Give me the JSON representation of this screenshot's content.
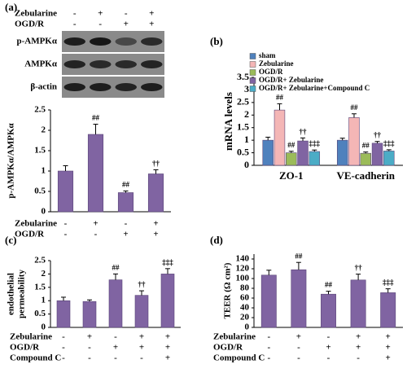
{
  "chart_data": [
    {
      "type": "bar",
      "panel_label": "(a)",
      "y_label": "p-AMPKα/AMPKα",
      "blot_conditions": [
        {
          "name": "Zebularine",
          "signs": [
            "-",
            "+",
            "-",
            "+"
          ]
        },
        {
          "name": "OGD/R",
          "signs": [
            "-",
            "-",
            "+",
            "+"
          ]
        }
      ],
      "blot": [
        "p-AMPKα",
        "AMPKα",
        "β-actin"
      ],
      "values": [
        1.0,
        1.9,
        0.47,
        0.93
      ],
      "errors": [
        0.13,
        0.25,
        0.04,
        0.1
      ],
      "annotations": [
        null,
        "##",
        "##",
        "††"
      ],
      "color": "#8064a2",
      "ylim": [
        0,
        2.5
      ],
      "yticks": [
        0,
        0.5,
        1,
        1.5,
        2,
        2.5
      ],
      "conditions": [
        {
          "name": "Zebularine",
          "signs": [
            "-",
            "+",
            "-",
            "+"
          ]
        },
        {
          "name": "OGD/R",
          "signs": [
            "-",
            "-",
            "+",
            "+"
          ]
        }
      ]
    },
    {
      "type": "grouped-bar",
      "panel_label": "(b)",
      "y_label": "mRNA levels",
      "categories": [
        "ZO-1",
        "VE-cadherin"
      ],
      "series": [
        {
          "name": "sham",
          "color": "#4f81bd",
          "values": [
            1.0,
            1.0
          ],
          "errors": [
            0.12,
            0.08
          ],
          "annotations": [
            null,
            null
          ]
        },
        {
          "name": "Zebularine",
          "color": "#f4b6b6",
          "values": [
            2.2,
            1.9
          ],
          "errors": [
            0.25,
            0.15
          ],
          "annotations": [
            "##",
            "##"
          ]
        },
        {
          "name": "OGD/R",
          "color": "#9bbb59",
          "values": [
            0.5,
            0.48
          ],
          "errors": [
            0.06,
            0.05
          ],
          "annotations": [
            "##",
            "##"
          ]
        },
        {
          "name": "OGD/R+ Zebularine",
          "color": "#8064a2",
          "values": [
            0.97,
            0.88
          ],
          "errors": [
            0.12,
            0.07
          ],
          "annotations": [
            "††",
            "††"
          ]
        },
        {
          "name": "OGD/R+ Zebularine+Compound C",
          "color": "#4bacc6",
          "values": [
            0.55,
            0.57
          ],
          "errors": [
            0.06,
            0.05
          ],
          "annotations": [
            "‡‡‡",
            "‡‡‡"
          ]
        }
      ],
      "ylim": [
        0,
        3.5
      ],
      "yticks": [
        0,
        0.5,
        1,
        1.5,
        2,
        2.5,
        3,
        3.5
      ]
    },
    {
      "type": "bar",
      "panel_label": "(c)",
      "y_label": [
        "endothelial",
        "permeability"
      ],
      "values": [
        1.0,
        0.97,
        1.78,
        1.2,
        2.0
      ],
      "errors": [
        0.13,
        0.06,
        0.22,
        0.17,
        0.2
      ],
      "annotations": [
        null,
        null,
        "##",
        "††",
        "‡‡‡"
      ],
      "color": "#8064a2",
      "ylim": [
        0,
        2.5
      ],
      "yticks": [
        0,
        0.5,
        1,
        1.5,
        2,
        2.5
      ],
      "conditions": [
        {
          "name": "Zebularine",
          "signs": [
            "-",
            "+",
            "-",
            "+",
            "+"
          ]
        },
        {
          "name": "OGD/R",
          "signs": [
            "-",
            "-",
            "+",
            "+",
            "+"
          ]
        },
        {
          "name": "Compound C",
          "signs": [
            "-",
            "-",
            "-",
            "-",
            "+"
          ]
        }
      ]
    },
    {
      "type": "bar",
      "panel_label": "(d)",
      "y_label": "TEER (Ω cm²)",
      "values": [
        107,
        118,
        68,
        97,
        71
      ],
      "errors": [
        10,
        15,
        6,
        12,
        8
      ],
      "annotations": [
        null,
        "##",
        "##",
        "††",
        "‡‡‡"
      ],
      "color": "#8064a2",
      "ylim": [
        0,
        150
      ],
      "yticks": [
        0,
        20,
        40,
        60,
        80,
        100,
        120,
        140
      ],
      "conditions": [
        {
          "name": "Zebularine",
          "signs": [
            "-",
            "+",
            "-",
            "+",
            "+"
          ]
        },
        {
          "name": "OGD/R",
          "signs": [
            "-",
            "-",
            "+",
            "+",
            "+"
          ]
        },
        {
          "name": "Compound C",
          "signs": [
            "-",
            "-",
            "-",
            "-",
            "+"
          ]
        }
      ]
    }
  ]
}
